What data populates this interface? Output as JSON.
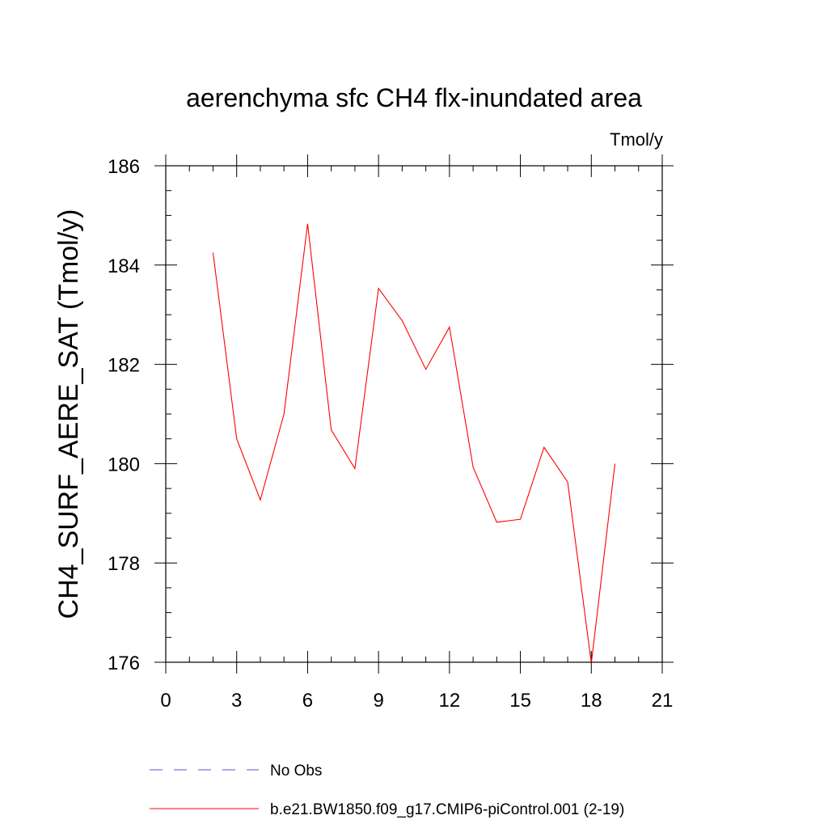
{
  "chart_data": {
    "type": "line",
    "title": "aerenchyma sfc CH4 flx-inundated area",
    "units_label": "Tmol/y",
    "xlabel": "",
    "ylabel": "CH4_SURF_AERE_SAT  (Tmol/y)",
    "xlim": [
      0,
      21
    ],
    "ylim": [
      176,
      186
    ],
    "x_ticks": [
      0,
      3,
      6,
      9,
      12,
      15,
      18,
      21
    ],
    "y_ticks": [
      176,
      178,
      180,
      182,
      184,
      186
    ],
    "x_minor_step": 1,
    "y_minor_step": 0.5,
    "grid": false,
    "legend_position": "bottom",
    "series": [
      {
        "name": "No Obs",
        "color": "#5555cc",
        "dash": "dashed",
        "x": [],
        "y": []
      },
      {
        "name": "b.e21.BW1850.f09_g17.CMIP6-piControl.001 (2-19)",
        "color": "#ff0000",
        "dash": "solid",
        "x": [
          2,
          3,
          4,
          5,
          6,
          7,
          8,
          9,
          10,
          11,
          12,
          13,
          14,
          15,
          16,
          17,
          18,
          19
        ],
        "y": [
          184.25,
          180.5,
          179.27,
          181.0,
          184.83,
          180.68,
          179.9,
          183.53,
          182.88,
          181.9,
          182.75,
          179.93,
          178.82,
          178.88,
          180.33,
          179.63,
          175.98,
          180.0
        ]
      }
    ]
  }
}
